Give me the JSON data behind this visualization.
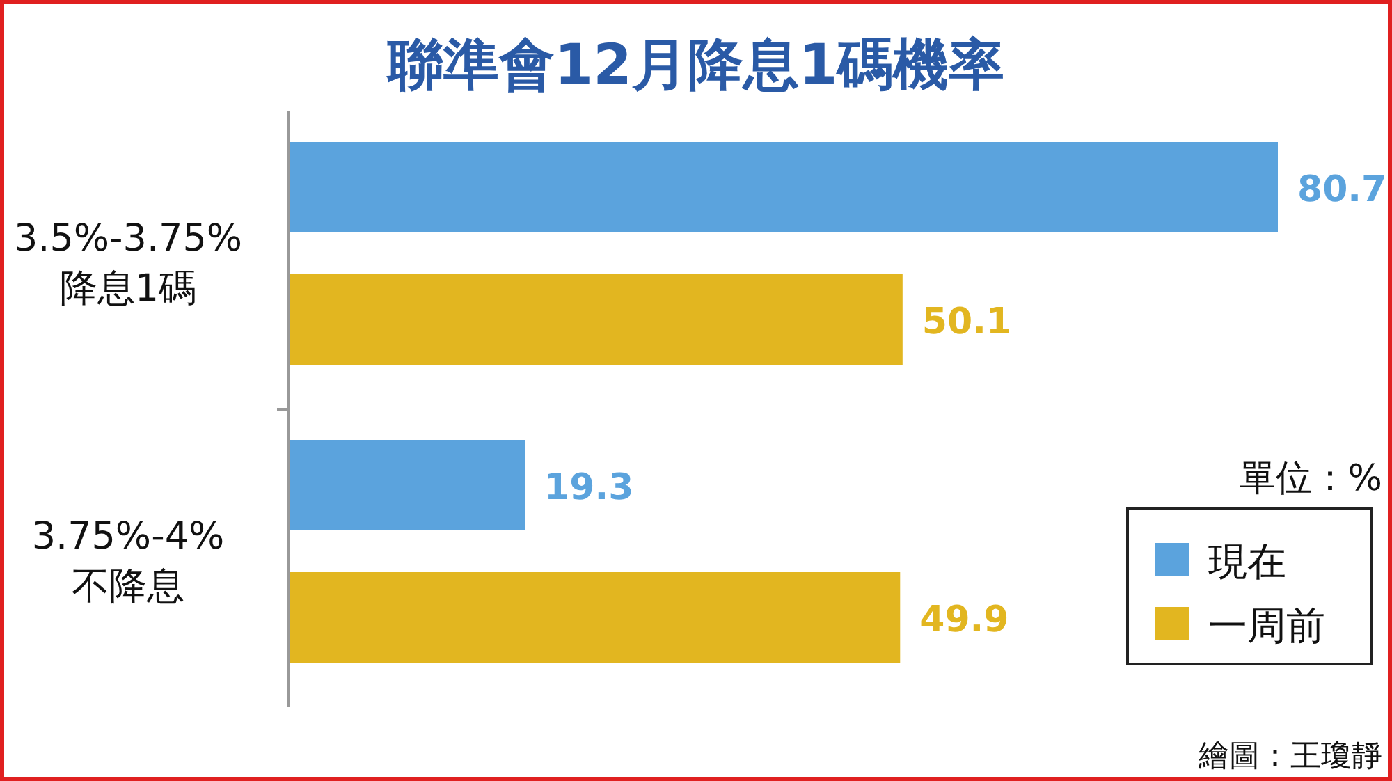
{
  "chart_data": {
    "type": "bar",
    "orientation": "horizontal",
    "title": "聯準會12月降息1碼機率",
    "categories": [
      "3.5%-3.75%\n降息1碼",
      "3.75%-4%\n不降息"
    ],
    "series": [
      {
        "name": "現在",
        "color": "#5ba3dd",
        "values": [
          80.7,
          19.3
        ]
      },
      {
        "name": "一周前",
        "color": "#e2b620",
        "values": [
          50.1,
          49.9
        ]
      }
    ],
    "data_labels": true,
    "legend": "bottom right",
    "annotations": [
      "單位：%",
      "繪圖：王瓊靜"
    ]
  }
}
